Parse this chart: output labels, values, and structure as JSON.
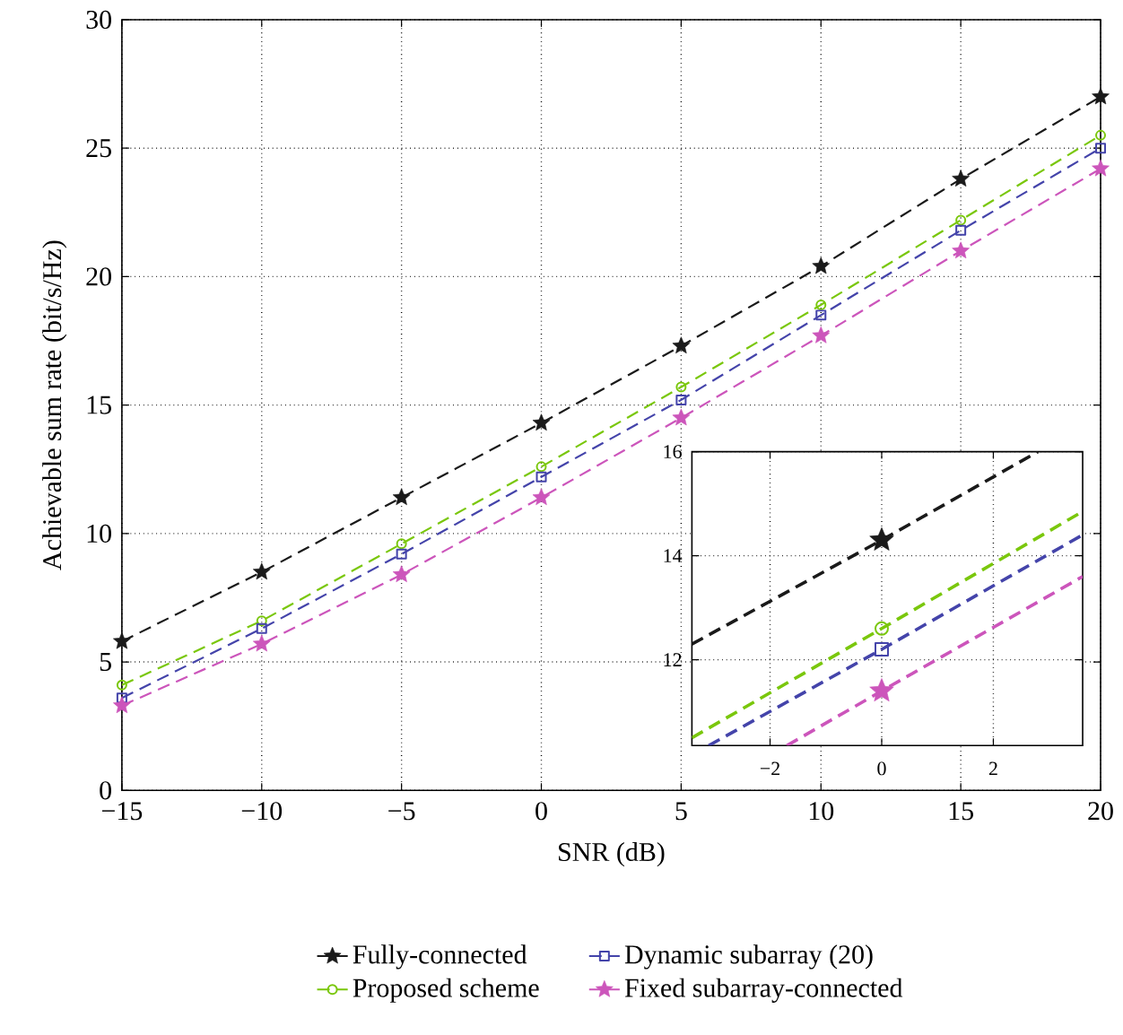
{
  "chart_data": [
    {
      "type": "line",
      "xlabel": "SNR (dB)",
      "ylabel": "Achievable sum rate (bit/s/Hz)",
      "x": [
        -15,
        -10,
        -5,
        0,
        5,
        10,
        15,
        20
      ],
      "xlim": [
        -15,
        20
      ],
      "ylim": [
        0,
        30
      ],
      "xticks": [
        {
          "value": -15,
          "label": "−15"
        },
        {
          "value": -10,
          "label": "−10"
        },
        {
          "value": -5,
          "label": "−5"
        },
        0,
        5,
        10,
        15,
        20
      ],
      "yticks": [
        0,
        5,
        10,
        15,
        20,
        25,
        30
      ],
      "grid": true,
      "legend": "bottom",
      "series": [
        {
          "name": "Fully-connected",
          "color": "#1a1a1a",
          "marker": "star",
          "line_style": "dashed",
          "values": [
            5.8,
            8.5,
            11.4,
            14.3,
            17.3,
            20.4,
            23.8,
            27.0
          ]
        },
        {
          "name": "Proposed scheme",
          "color": "#7ac70c",
          "marker": "circle",
          "line_style": "dashed",
          "values": [
            4.1,
            6.6,
            9.6,
            12.6,
            15.7,
            18.9,
            22.2,
            25.5
          ]
        },
        {
          "name": "Dynamic subarray (20)",
          "color": "#4444aa",
          "marker": "square",
          "line_style": "dashed",
          "values": [
            3.6,
            6.3,
            9.2,
            12.2,
            15.2,
            18.5,
            21.8,
            25.0
          ]
        },
        {
          "name": "Fixed subarray-connected",
          "color": "#cc55bb",
          "marker": "star",
          "line_style": "dashed",
          "values": [
            3.3,
            5.7,
            8.4,
            11.4,
            14.5,
            17.7,
            21.0,
            24.2
          ]
        }
      ]
    },
    {
      "type": "line",
      "xlim": [
        -3.4,
        3.6
      ],
      "ylim": [
        10.35,
        16
      ],
      "xticks": [
        {
          "value": -2,
          "label": "−2"
        },
        0,
        2
      ],
      "yticks": [
        12,
        14,
        16
      ],
      "grid": true,
      "series": [
        {
          "color": "#1a1a1a",
          "line_style": "dashed",
          "x": [
            -3.4,
            0,
            2.8
          ],
          "values": [
            12.3,
            14.3,
            16.0
          ]
        },
        {
          "color": "#7ac70c",
          "line_style": "dashed",
          "x": [
            -3.4,
            0,
            3.6
          ],
          "values": [
            10.5,
            12.6,
            14.85
          ]
        },
        {
          "color": "#4444aa",
          "line_style": "dashed",
          "x": [
            -3.1,
            0,
            3.6
          ],
          "values": [
            10.35,
            12.2,
            14.4
          ]
        },
        {
          "color": "#cc55bb",
          "line_style": "dashed",
          "x": [
            -1.7,
            0,
            3.6
          ],
          "values": [
            10.35,
            11.4,
            13.6
          ]
        },
        {
          "type": "scatter",
          "color": "#1a1a1a",
          "marker": "star",
          "x": [
            0
          ],
          "values": [
            14.3
          ]
        },
        {
          "type": "scatter",
          "color": "#7ac70c",
          "marker": "circle",
          "x": [
            0
          ],
          "values": [
            12.6
          ]
        },
        {
          "type": "scatter",
          "color": "#4444aa",
          "marker": "square",
          "x": [
            0
          ],
          "values": [
            12.2
          ]
        },
        {
          "type": "scatter",
          "color": "#cc55bb",
          "marker": "star",
          "x": [
            0
          ],
          "values": [
            11.4
          ]
        }
      ]
    }
  ]
}
